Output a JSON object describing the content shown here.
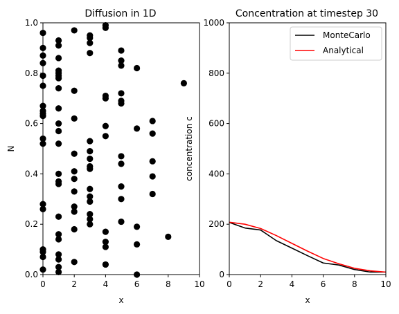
{
  "chart_data": [
    {
      "type": "scatter",
      "title": "Diffusion in 1D",
      "xlabel": "x",
      "ylabel": "N",
      "xlim": [
        0,
        10
      ],
      "ylim": [
        0,
        1
      ],
      "xticks": [
        "0",
        "2",
        "4",
        "6",
        "8",
        "10"
      ],
      "yticks": [
        "0.0",
        "0.2",
        "0.4",
        "0.6",
        "0.8",
        "1.0"
      ],
      "grid": false,
      "marker_color": "#000000",
      "points": [
        [
          0,
          0.96
        ],
        [
          0,
          0.9
        ],
        [
          0,
          0.87
        ],
        [
          0,
          0.84
        ],
        [
          0,
          0.79
        ],
        [
          0,
          0.75
        ],
        [
          0,
          0.67
        ],
        [
          0,
          0.65
        ],
        [
          0,
          0.64
        ],
        [
          0,
          0.63
        ],
        [
          0,
          0.54
        ],
        [
          0,
          0.52
        ],
        [
          0,
          0.28
        ],
        [
          0,
          0.26
        ],
        [
          0,
          0.1
        ],
        [
          0,
          0.09
        ],
        [
          0,
          0.07
        ],
        [
          0,
          0.02
        ],
        [
          1,
          0.93
        ],
        [
          1,
          0.91
        ],
        [
          1,
          0.86
        ],
        [
          1,
          0.81
        ],
        [
          1,
          0.8
        ],
        [
          1,
          0.79
        ],
        [
          1,
          0.78
        ],
        [
          1,
          0.74
        ],
        [
          1,
          0.66
        ],
        [
          1,
          0.6
        ],
        [
          1,
          0.57
        ],
        [
          1,
          0.52
        ],
        [
          1,
          0.4
        ],
        [
          1,
          0.37
        ],
        [
          1,
          0.36
        ],
        [
          1,
          0.23
        ],
        [
          1,
          0.16
        ],
        [
          1,
          0.14
        ],
        [
          1,
          0.08
        ],
        [
          1,
          0.06
        ],
        [
          1,
          0.03
        ],
        [
          1,
          0.01
        ],
        [
          2,
          0.97
        ],
        [
          2,
          0.73
        ],
        [
          2,
          0.62
        ],
        [
          2,
          0.48
        ],
        [
          2,
          0.41
        ],
        [
          2,
          0.38
        ],
        [
          2,
          0.33
        ],
        [
          2,
          0.27
        ],
        [
          2,
          0.25
        ],
        [
          2,
          0.18
        ],
        [
          2,
          0.05
        ],
        [
          3,
          0.95
        ],
        [
          3,
          0.94
        ],
        [
          3,
          0.92
        ],
        [
          3,
          0.88
        ],
        [
          3,
          0.53
        ],
        [
          3,
          0.49
        ],
        [
          3,
          0.46
        ],
        [
          3,
          0.43
        ],
        [
          3,
          0.42
        ],
        [
          3,
          0.34
        ],
        [
          3,
          0.31
        ],
        [
          3,
          0.29
        ],
        [
          3,
          0.24
        ],
        [
          3,
          0.22
        ],
        [
          3,
          0.2
        ],
        [
          4,
          0.99
        ],
        [
          4,
          0.98
        ],
        [
          4,
          0.71
        ],
        [
          4,
          0.7
        ],
        [
          4,
          0.59
        ],
        [
          4,
          0.55
        ],
        [
          4,
          0.17
        ],
        [
          4,
          0.13
        ],
        [
          4,
          0.11
        ],
        [
          4,
          0.04
        ],
        [
          5,
          0.89
        ],
        [
          5,
          0.85
        ],
        [
          5,
          0.83
        ],
        [
          5,
          0.72
        ],
        [
          5,
          0.69
        ],
        [
          5,
          0.68
        ],
        [
          5,
          0.47
        ],
        [
          5,
          0.44
        ],
        [
          5,
          0.35
        ],
        [
          5,
          0.3
        ],
        [
          5,
          0.21
        ],
        [
          6,
          0.82
        ],
        [
          6,
          0.58
        ],
        [
          6,
          0.19
        ],
        [
          6,
          0.12
        ],
        [
          6,
          0.0
        ],
        [
          7,
          0.61
        ],
        [
          7,
          0.56
        ],
        [
          7,
          0.45
        ],
        [
          7,
          0.39
        ],
        [
          7,
          0.32
        ],
        [
          8,
          0.15
        ],
        [
          9,
          0.76
        ]
      ]
    },
    {
      "type": "line",
      "title": "Concentration at timestep 30",
      "xlabel": "x",
      "ylabel": "concentration c",
      "xlim": [
        0,
        10
      ],
      "ylim": [
        0,
        1000
      ],
      "xticks": [
        "0",
        "2",
        "4",
        "6",
        "8",
        "10"
      ],
      "yticks": [
        "0",
        "200",
        "400",
        "600",
        "800",
        "1000"
      ],
      "grid": false,
      "legend_position": "top-right",
      "x": [
        0,
        1,
        2,
        3,
        4,
        5,
        6,
        7,
        8,
        9,
        10
      ],
      "series": [
        {
          "name": "MonteCarlo",
          "color": "#000000",
          "values": [
            207,
            185,
            177,
            135,
            105,
            75,
            46,
            38,
            20,
            10,
            10
          ]
        },
        {
          "name": "Analytical",
          "color": "#ff0000",
          "values": [
            208,
            200,
            183,
            155,
            124,
            93,
            64,
            43,
            25,
            15,
            10
          ]
        }
      ]
    }
  ]
}
